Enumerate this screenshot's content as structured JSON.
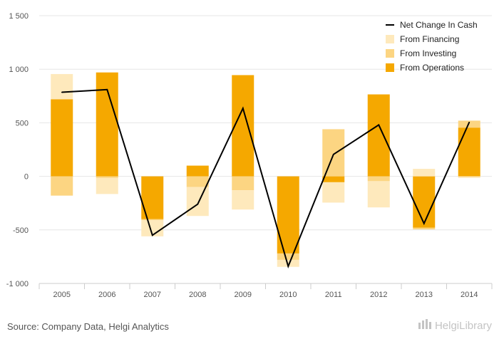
{
  "colors": {
    "operations": "#F5A800",
    "investing": "#FCD582",
    "financing": "#FEE9BC",
    "net": "#000000",
    "grid": "#e6e6e6",
    "axis": "#cccccc"
  },
  "chart_data": {
    "type": "bar",
    "stacked": true,
    "categories": [
      "2005",
      "2006",
      "2007",
      "2008",
      "2009",
      "2010",
      "2011",
      "2012",
      "2013",
      "2014"
    ],
    "series": [
      {
        "name": "From Operations",
        "type": "bar",
        "color_key": "operations",
        "values": [
          720,
          970,
          -400,
          100,
          945,
          -720,
          -55,
          765,
          -480,
          455
        ]
      },
      {
        "name": "From Investing",
        "type": "bar",
        "color_key": "investing",
        "values": [
          -180,
          -15,
          -10,
          -100,
          -130,
          -60,
          440,
          -45,
          -15,
          65
        ]
      },
      {
        "name": "From Financing",
        "type": "bar",
        "color_key": "financing",
        "values": [
          235,
          -150,
          -150,
          -270,
          -180,
          -65,
          -190,
          -245,
          70,
          -15
        ]
      },
      {
        "name": "Net Change In Cash",
        "type": "line",
        "color_key": "net",
        "values": [
          785,
          810,
          -550,
          -260,
          635,
          -840,
          205,
          480,
          -440,
          505
        ]
      }
    ],
    "ylim": [
      -1000,
      1500
    ],
    "yticks": [
      -1000,
      -500,
      0,
      500,
      1000,
      1500
    ],
    "ytick_labels": [
      "-1 000",
      "-500",
      "0",
      "500",
      "1 000",
      "1 500"
    ],
    "legend_position": "top-right",
    "grid": true
  },
  "legend": {
    "net": "Net Change In Cash",
    "financing": "From Financing",
    "investing": "From Investing",
    "operations": "From Operations"
  },
  "footer": {
    "source": "Source: Company Data, Helgi Analytics",
    "logo_text": "HelgiLibrary",
    "logo_icon": "building-icon"
  }
}
